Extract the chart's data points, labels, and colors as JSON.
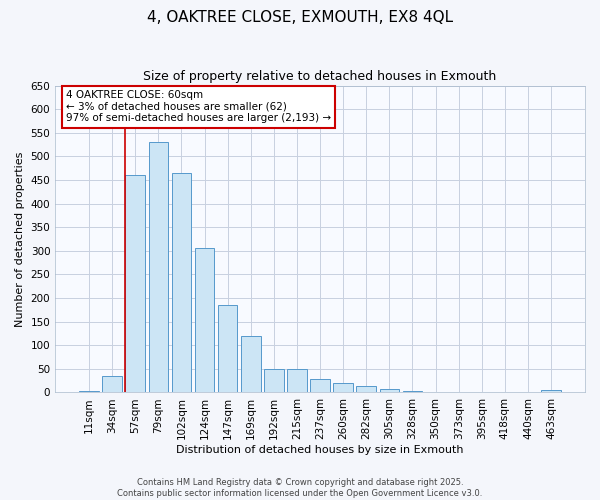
{
  "title": "4, OAKTREE CLOSE, EXMOUTH, EX8 4QL",
  "subtitle": "Size of property relative to detached houses in Exmouth",
  "xlabel": "Distribution of detached houses by size in Exmouth",
  "ylabel": "Number of detached properties",
  "bar_labels": [
    "11sqm",
    "34sqm",
    "57sqm",
    "79sqm",
    "102sqm",
    "124sqm",
    "147sqm",
    "169sqm",
    "192sqm",
    "215sqm",
    "237sqm",
    "260sqm",
    "282sqm",
    "305sqm",
    "328sqm",
    "350sqm",
    "373sqm",
    "395sqm",
    "418sqm",
    "440sqm",
    "463sqm"
  ],
  "bar_values": [
    3,
    35,
    460,
    530,
    465,
    305,
    185,
    120,
    50,
    50,
    28,
    20,
    13,
    8,
    3,
    2,
    1,
    1,
    0,
    0,
    5
  ],
  "bar_color": "#cce5f5",
  "bar_edge_color": "#5599cc",
  "vline_color": "#cc0000",
  "vline_x_index": 2,
  "ylim": [
    0,
    650
  ],
  "yticks": [
    0,
    50,
    100,
    150,
    200,
    250,
    300,
    350,
    400,
    450,
    500,
    550,
    600,
    650
  ],
  "annotation_title": "4 OAKTREE CLOSE: 60sqm",
  "annotation_line1": "← 3% of detached houses are smaller (62)",
  "annotation_line2": "97% of semi-detached houses are larger (2,193) →",
  "annotation_box_facecolor": "#ffffff",
  "annotation_box_edgecolor": "#cc0000",
  "footer1": "Contains HM Land Registry data © Crown copyright and database right 2025.",
  "footer2": "Contains public sector information licensed under the Open Government Licence v3.0.",
  "bg_color": "#f4f6fb",
  "plot_bg_color": "#f8faff",
  "grid_color": "#c8d0e0",
  "title_fontsize": 11,
  "subtitle_fontsize": 9,
  "axis_label_fontsize": 8,
  "tick_fontsize": 7.5,
  "annotation_fontsize": 7.5,
  "footer_fontsize": 6
}
